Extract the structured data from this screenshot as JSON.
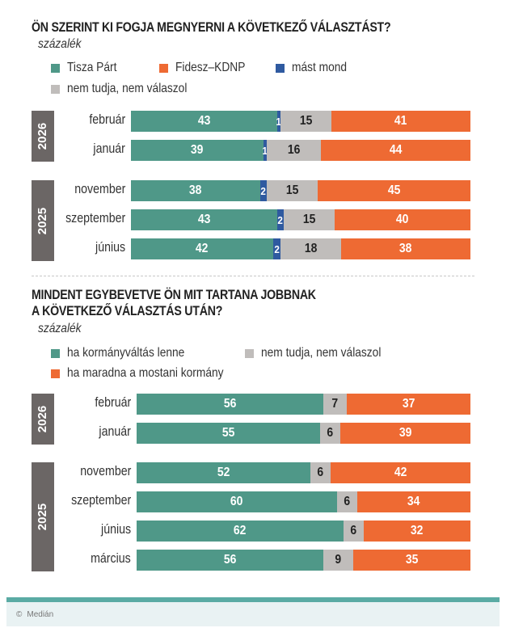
{
  "colors": {
    "teal": "#4f9888",
    "orange": "#ee6a33",
    "blue": "#2f5aa0",
    "gray": "#c0bdbb",
    "year_tab": "#6b6665"
  },
  "footer": {
    "copyright_symbol": "©",
    "source": "Medián"
  },
  "chart_data": [
    {
      "type": "bar",
      "orientation": "horizontal-stacked-100",
      "title": "ÖN SZERINT KI FOGJA MEGNYERNI A KÖVETKEZŐ VÁLASZTÁST?",
      "subtitle": "százalék",
      "legend": [
        {
          "label": "Tisza Párt",
          "color": "#4f9888"
        },
        {
          "label": "Fidesz–KDNP",
          "color": "#ee6a33"
        },
        {
          "label": "mást mond",
          "color": "#2f5aa0"
        },
        {
          "label": "nem tudja, nem válaszol",
          "color": "#c0bdbb"
        }
      ],
      "groups": [
        {
          "year": "2026",
          "categories": [
            "február",
            "január"
          ]
        },
        {
          "year": "2025",
          "categories": [
            "november",
            "szeptember",
            "június"
          ]
        }
      ],
      "categories": [
        "február",
        "január",
        "november",
        "szeptember",
        "június"
      ],
      "series": [
        {
          "name": "Tisza Párt",
          "color": "#4f9888",
          "label_color": "#ffffff",
          "values": [
            43,
            39,
            38,
            43,
            42
          ]
        },
        {
          "name": "mást mond",
          "color": "#2f5aa0",
          "label_color": "#ffffff",
          "values": [
            1,
            1,
            2,
            2,
            2
          ]
        },
        {
          "name": "nem tudja, nem válaszol",
          "color": "#c0bdbb",
          "label_color": "#222222",
          "values": [
            15,
            16,
            15,
            15,
            18
          ]
        },
        {
          "name": "Fidesz–KDNP",
          "color": "#ee6a33",
          "label_color": "#ffffff",
          "values": [
            41,
            44,
            45,
            40,
            38
          ]
        }
      ],
      "xlim": [
        0,
        100
      ]
    },
    {
      "type": "bar",
      "orientation": "horizontal-stacked-100",
      "title": "MINDENT EGYBEVETVE ÖN MIT TARTANA JOBBNAK",
      "title_line2": "A KÖVETKEZŐ VÁLASZTÁS UTÁN?",
      "subtitle": "százalék",
      "legend": [
        {
          "label": "ha kormányváltás lenne",
          "color": "#4f9888"
        },
        {
          "label": "nem tudja, nem válaszol",
          "color": "#c0bdbb"
        },
        {
          "label": "ha maradna a mostani kormány",
          "color": "#ee6a33"
        }
      ],
      "groups": [
        {
          "year": "2026",
          "categories": [
            "február",
            "január"
          ]
        },
        {
          "year": "2025",
          "categories": [
            "november",
            "szeptember",
            "június",
            "március"
          ]
        }
      ],
      "categories": [
        "február",
        "január",
        "november",
        "szeptember",
        "június",
        "március"
      ],
      "series": [
        {
          "name": "ha kormányváltás lenne",
          "color": "#4f9888",
          "label_color": "#ffffff",
          "values": [
            56,
            55,
            52,
            60,
            62,
            56
          ]
        },
        {
          "name": "nem tudja, nem válaszol",
          "color": "#c0bdbb",
          "label_color": "#222222",
          "values": [
            7,
            6,
            6,
            6,
            6,
            9
          ]
        },
        {
          "name": "ha maradna a mostani kormány",
          "color": "#ee6a33",
          "label_color": "#ffffff",
          "values": [
            37,
            39,
            42,
            34,
            32,
            35
          ]
        }
      ],
      "xlim": [
        0,
        100
      ]
    }
  ]
}
